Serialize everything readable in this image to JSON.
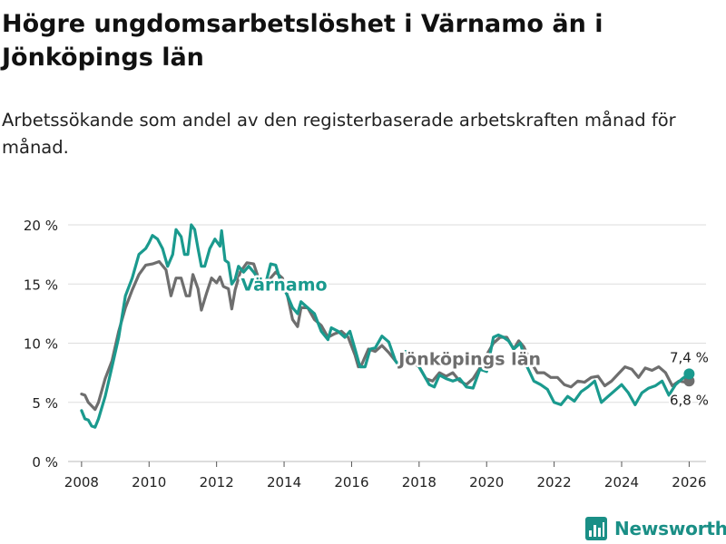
{
  "title": "Högre ungdomsarbetslöshet i Värnamo än i Jönköpings län",
  "subtitle": "Arbetssökande som andel av den registerbaserade arbetskraften månad för månad.",
  "brand": {
    "name": "Newsworthy",
    "icon": "bar-chart-logo-icon",
    "color": "#1a8f86"
  },
  "chart_data": {
    "type": "line",
    "ylim": [
      0,
      20
    ],
    "xlim": [
      2007.6,
      2026.5
    ],
    "yticks": [
      0,
      5,
      10,
      15,
      20
    ],
    "ytick_labels": [
      "0 %",
      "5 %",
      "10 %",
      "15 %",
      "20 %"
    ],
    "xticks": [
      2008,
      2010,
      2012,
      2014,
      2016,
      2018,
      2020,
      2022,
      2024,
      2026
    ],
    "xtick_labels": [
      "2008",
      "2010",
      "2012",
      "2014",
      "2016",
      "2018",
      "2020",
      "2022",
      "2024",
      "2026"
    ],
    "grid": true,
    "series": [
      {
        "name": "Jönköpings län",
        "label": "Jönköpings län",
        "color": "#6e6e6e",
        "end_label": "6,8 %",
        "end_value": 6.8,
        "points": [
          [
            2008.0,
            5.7
          ],
          [
            2008.1,
            5.6
          ],
          [
            2008.2,
            5.0
          ],
          [
            2008.4,
            4.4
          ],
          [
            2008.5,
            5.0
          ],
          [
            2008.7,
            7.0
          ],
          [
            2008.9,
            8.5
          ],
          [
            2009.1,
            11.0
          ],
          [
            2009.3,
            13.0
          ],
          [
            2009.5,
            14.5
          ],
          [
            2009.7,
            15.8
          ],
          [
            2009.9,
            16.6
          ],
          [
            2010.1,
            16.7
          ],
          [
            2010.3,
            16.9
          ],
          [
            2010.5,
            16.2
          ],
          [
            2010.65,
            14.0
          ],
          [
            2010.8,
            15.5
          ],
          [
            2010.95,
            15.5
          ],
          [
            2011.1,
            14.0
          ],
          [
            2011.2,
            14.0
          ],
          [
            2011.3,
            15.8
          ],
          [
            2011.45,
            14.6
          ],
          [
            2011.55,
            12.8
          ],
          [
            2011.7,
            14.2
          ],
          [
            2011.85,
            15.5
          ],
          [
            2012.0,
            15.1
          ],
          [
            2012.1,
            15.6
          ],
          [
            2012.2,
            14.8
          ],
          [
            2012.35,
            14.6
          ],
          [
            2012.45,
            12.9
          ],
          [
            2012.55,
            14.5
          ],
          [
            2012.7,
            16.0
          ],
          [
            2012.9,
            16.8
          ],
          [
            2013.1,
            16.7
          ],
          [
            2013.3,
            15.0
          ],
          [
            2013.45,
            14.5
          ],
          [
            2013.6,
            15.5
          ],
          [
            2013.75,
            16.0
          ],
          [
            2013.95,
            15.5
          ],
          [
            2014.1,
            14.0
          ],
          [
            2014.25,
            12.0
          ],
          [
            2014.4,
            11.4
          ],
          [
            2014.5,
            13.0
          ],
          [
            2014.7,
            13.0
          ],
          [
            2014.9,
            12.0
          ],
          [
            2015.1,
            11.5
          ],
          [
            2015.3,
            10.5
          ],
          [
            2015.5,
            10.8
          ],
          [
            2015.7,
            11.0
          ],
          [
            2015.9,
            10.5
          ],
          [
            2016.1,
            9.0
          ],
          [
            2016.2,
            8.0
          ],
          [
            2016.3,
            8.2
          ],
          [
            2016.5,
            9.5
          ],
          [
            2016.7,
            9.3
          ],
          [
            2016.9,
            9.8
          ],
          [
            2017.1,
            9.2
          ],
          [
            2017.3,
            8.5
          ],
          [
            2017.45,
            8.0
          ],
          [
            2017.6,
            9.0
          ],
          [
            2017.8,
            8.4
          ],
          [
            2018.0,
            8.0
          ],
          [
            2018.2,
            7.0
          ],
          [
            2018.4,
            6.8
          ],
          [
            2018.6,
            7.5
          ],
          [
            2018.8,
            7.2
          ],
          [
            2019.0,
            7.5
          ],
          [
            2019.2,
            6.8
          ],
          [
            2019.4,
            6.5
          ],
          [
            2019.6,
            7.0
          ],
          [
            2019.8,
            7.9
          ],
          [
            2020.0,
            9.0
          ],
          [
            2020.2,
            10.0
          ],
          [
            2020.4,
            10.5
          ],
          [
            2020.6,
            10.5
          ],
          [
            2020.8,
            9.5
          ],
          [
            2020.95,
            10.2
          ],
          [
            2021.1,
            9.7
          ],
          [
            2021.3,
            8.5
          ],
          [
            2021.5,
            7.5
          ],
          [
            2021.7,
            7.5
          ],
          [
            2021.9,
            7.1
          ],
          [
            2022.1,
            7.1
          ],
          [
            2022.3,
            6.5
          ],
          [
            2022.5,
            6.3
          ],
          [
            2022.7,
            6.8
          ],
          [
            2022.9,
            6.7
          ],
          [
            2023.1,
            7.1
          ],
          [
            2023.3,
            7.2
          ],
          [
            2023.5,
            6.4
          ],
          [
            2023.7,
            6.8
          ],
          [
            2023.9,
            7.4
          ],
          [
            2024.1,
            8.0
          ],
          [
            2024.3,
            7.8
          ],
          [
            2024.5,
            7.1
          ],
          [
            2024.7,
            7.9
          ],
          [
            2024.9,
            7.7
          ],
          [
            2025.1,
            8.0
          ],
          [
            2025.3,
            7.5
          ],
          [
            2025.5,
            6.4
          ],
          [
            2025.7,
            6.8
          ],
          [
            2025.9,
            6.7
          ],
          [
            2026.0,
            6.8
          ]
        ]
      },
      {
        "name": "Värnamo",
        "label": "Värnamo",
        "color": "#1a9a8e",
        "end_label": "7,4 %",
        "end_value": 7.4,
        "points": [
          [
            2008.0,
            4.3
          ],
          [
            2008.1,
            3.6
          ],
          [
            2008.2,
            3.5
          ],
          [
            2008.3,
            3.0
          ],
          [
            2008.4,
            2.9
          ],
          [
            2008.5,
            3.6
          ],
          [
            2008.7,
            5.5
          ],
          [
            2008.9,
            8.0
          ],
          [
            2009.1,
            10.5
          ],
          [
            2009.3,
            14.0
          ],
          [
            2009.5,
            15.5
          ],
          [
            2009.7,
            17.5
          ],
          [
            2009.9,
            18.0
          ],
          [
            2010.0,
            18.5
          ],
          [
            2010.1,
            19.1
          ],
          [
            2010.25,
            18.8
          ],
          [
            2010.4,
            18.0
          ],
          [
            2010.55,
            16.5
          ],
          [
            2010.7,
            17.5
          ],
          [
            2010.8,
            19.6
          ],
          [
            2010.95,
            19.0
          ],
          [
            2011.05,
            17.5
          ],
          [
            2011.15,
            17.5
          ],
          [
            2011.25,
            20.0
          ],
          [
            2011.35,
            19.6
          ],
          [
            2011.45,
            18.0
          ],
          [
            2011.55,
            16.5
          ],
          [
            2011.65,
            16.5
          ],
          [
            2011.8,
            18.0
          ],
          [
            2011.95,
            18.8
          ],
          [
            2012.1,
            18.2
          ],
          [
            2012.15,
            19.5
          ],
          [
            2012.25,
            17.0
          ],
          [
            2012.35,
            16.8
          ],
          [
            2012.45,
            15.0
          ],
          [
            2012.55,
            15.4
          ],
          [
            2012.65,
            16.5
          ],
          [
            2012.8,
            16.0
          ],
          [
            2012.95,
            16.5
          ],
          [
            2013.1,
            16.0
          ],
          [
            2013.3,
            15.2
          ],
          [
            2013.45,
            15.0
          ],
          [
            2013.6,
            16.7
          ],
          [
            2013.75,
            16.6
          ],
          [
            2013.9,
            15.2
          ],
          [
            2014.1,
            14.0
          ],
          [
            2014.25,
            13.0
          ],
          [
            2014.4,
            12.5
          ],
          [
            2014.5,
            13.5
          ],
          [
            2014.7,
            13.0
          ],
          [
            2014.9,
            12.5
          ],
          [
            2015.1,
            11.0
          ],
          [
            2015.3,
            10.3
          ],
          [
            2015.4,
            11.3
          ],
          [
            2015.6,
            11.0
          ],
          [
            2015.8,
            10.5
          ],
          [
            2015.95,
            11.0
          ],
          [
            2016.1,
            9.5
          ],
          [
            2016.25,
            8.0
          ],
          [
            2016.4,
            8.0
          ],
          [
            2016.55,
            9.5
          ],
          [
            2016.7,
            9.6
          ],
          [
            2016.9,
            10.6
          ],
          [
            2017.1,
            10.1
          ],
          [
            2017.3,
            8.5
          ],
          [
            2017.45,
            7.9
          ],
          [
            2017.6,
            9.3
          ],
          [
            2017.8,
            8.8
          ],
          [
            2018.0,
            8.0
          ],
          [
            2018.1,
            7.5
          ],
          [
            2018.3,
            6.5
          ],
          [
            2018.45,
            6.3
          ],
          [
            2018.6,
            7.3
          ],
          [
            2018.8,
            7.0
          ],
          [
            2019.0,
            6.8
          ],
          [
            2019.2,
            7.0
          ],
          [
            2019.4,
            6.3
          ],
          [
            2019.6,
            6.2
          ],
          [
            2019.8,
            7.8
          ],
          [
            2020.0,
            7.6
          ],
          [
            2020.2,
            10.5
          ],
          [
            2020.35,
            10.7
          ],
          [
            2020.5,
            10.5
          ],
          [
            2020.65,
            10.2
          ],
          [
            2020.8,
            9.5
          ],
          [
            2021.0,
            10.0
          ],
          [
            2021.2,
            8.0
          ],
          [
            2021.4,
            6.8
          ],
          [
            2021.6,
            6.5
          ],
          [
            2021.8,
            6.1
          ],
          [
            2022.0,
            5.0
          ],
          [
            2022.2,
            4.8
          ],
          [
            2022.4,
            5.5
          ],
          [
            2022.6,
            5.1
          ],
          [
            2022.8,
            5.9
          ],
          [
            2023.0,
            6.3
          ],
          [
            2023.2,
            6.8
          ],
          [
            2023.4,
            5.0
          ],
          [
            2023.6,
            5.5
          ],
          [
            2023.8,
            6.0
          ],
          [
            2024.0,
            6.5
          ],
          [
            2024.2,
            5.8
          ],
          [
            2024.4,
            4.8
          ],
          [
            2024.6,
            5.8
          ],
          [
            2024.8,
            6.2
          ],
          [
            2025.0,
            6.4
          ],
          [
            2025.2,
            6.8
          ],
          [
            2025.4,
            5.6
          ],
          [
            2025.6,
            6.5
          ],
          [
            2025.8,
            7.0
          ],
          [
            2026.0,
            7.4
          ]
        ]
      }
    ]
  }
}
